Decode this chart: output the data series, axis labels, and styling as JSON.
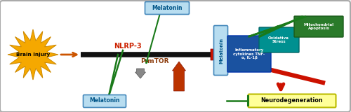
{
  "bg_color": "#f0f0f0",
  "border_color": "#aaaaaa",
  "brain_injury_color": "#f5a800",
  "brain_injury_text": "Brain Injury",
  "nlrp3_color": "#cc2200",
  "nlrp3_text": "NLRP-3",
  "pmtor_color": "#8B3A0A",
  "pmtor_text": "P-mTOR",
  "melatonin_box_color": "#b8ddf0",
  "melatonin_text": "Melatonin",
  "neuro_box_color": "#ffff99",
  "neuro_text": "Neurodegeneration",
  "neuro_border_color": "#bbbb00",
  "inflam_box_color": "#1a52a0",
  "inflam_text": "Inflammatory\ncytokines TNF-\nα, IL-1β",
  "oxid_box_color": "#009090",
  "oxid_text": "Oxidative\nStress",
  "mito_box_color": "#2a7a2a",
  "mito_text": "Mitochondrial\nApoptosis",
  "main_line_color": "#111111",
  "orange_arrow_color": "#cc5500",
  "red_arrow_color": "#cc1100",
  "dark_red_arrow": "#aa0000",
  "gray_arrow_color": "#888888",
  "green_line_color": "#1a7a1a"
}
